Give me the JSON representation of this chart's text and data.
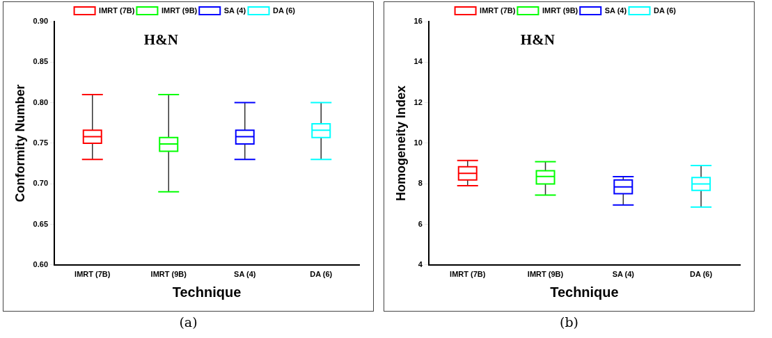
{
  "chart_data": [
    {
      "type": "box",
      "title": "H&N",
      "xlabel": "Technique",
      "ylabel": "Conformity Number",
      "categories": [
        "IMRT (7B)",
        "IMRT (9B)",
        "SA (4)",
        "DA (6)"
      ],
      "series": [
        {
          "name": "IMRT (7B)",
          "color": "#ff0000",
          "boxes": [
            {
              "low": 0.73,
              "q1": 0.75,
              "median": 0.758,
              "q3": 0.766,
              "high": 0.81
            },
            null,
            null,
            null
          ]
        },
        {
          "name": "IMRT (9B)",
          "color": "#00ff00",
          "boxes": [
            null,
            {
              "low": 0.69,
              "q1": 0.74,
              "median": 0.749,
              "q3": 0.757,
              "high": 0.81
            },
            null,
            null
          ]
        },
        {
          "name": "SA (4)",
          "color": "#0000ff",
          "boxes": [
            null,
            null,
            {
              "low": 0.73,
              "q1": 0.749,
              "median": 0.758,
              "q3": 0.766,
              "high": 0.8
            },
            null
          ]
        },
        {
          "name": "DA (6)",
          "color": "#00ffff",
          "boxes": [
            null,
            null,
            null,
            {
              "low": 0.73,
              "q1": 0.757,
              "median": 0.766,
              "q3": 0.774,
              "high": 0.8
            }
          ]
        }
      ],
      "ylim": [
        0.6,
        0.9
      ],
      "yticks": [
        {
          "value": 0.6,
          "label": "0.60"
        },
        {
          "value": 0.65,
          "label": "0.65"
        },
        {
          "value": 0.7,
          "label": "0.70"
        },
        {
          "value": 0.75,
          "label": "0.75"
        },
        {
          "value": 0.8,
          "label": "0.80"
        },
        {
          "value": 0.85,
          "label": "0.85"
        },
        {
          "value": 0.9,
          "label": "0.90"
        }
      ],
      "grid": false,
      "legend": "top",
      "annotations": [
        "(a)"
      ]
    },
    {
      "type": "box",
      "title": "H&N",
      "xlabel": "Technique",
      "ylabel": "Homogeneity Index",
      "categories": [
        "IMRT (7B)",
        "IMRT (9B)",
        "SA (4)",
        "DA (6)"
      ],
      "series": [
        {
          "name": "IMRT (7B)",
          "color": "#ff0000",
          "boxes": [
            {
              "low": 7.9,
              "q1": 8.19,
              "median": 8.51,
              "q3": 8.84,
              "high": 9.15
            },
            null,
            null,
            null
          ]
        },
        {
          "name": "IMRT (9B)",
          "color": "#00ff00",
          "boxes": [
            null,
            {
              "low": 7.44,
              "q1": 7.99,
              "median": 8.36,
              "q3": 8.64,
              "high": 9.09
            },
            null,
            null
          ]
        },
        {
          "name": "SA (4)",
          "color": "#0000ff",
          "boxes": [
            null,
            null,
            {
              "low": 6.95,
              "q1": 7.51,
              "median": 7.84,
              "q3": 8.19,
              "high": 8.35
            },
            null
          ]
        },
        {
          "name": "DA (6)",
          "color": "#00ffff",
          "boxes": [
            null,
            null,
            null,
            {
              "low": 6.85,
              "q1": 7.67,
              "median": 7.99,
              "q3": 8.31,
              "high": 8.9
            }
          ]
        }
      ],
      "ylim": [
        4,
        16
      ],
      "yticks": [
        4,
        6,
        8,
        10,
        12,
        14,
        16
      ],
      "grid": false,
      "legend": "top",
      "annotations": [
        "(b)"
      ]
    }
  ]
}
